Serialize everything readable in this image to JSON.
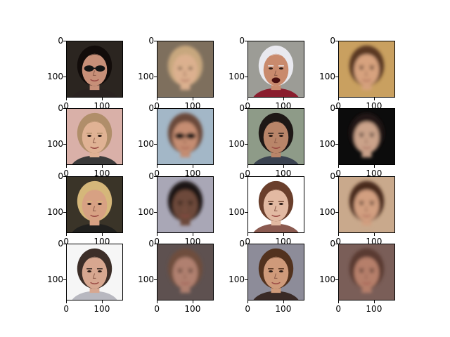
{
  "figure": {
    "background": "#ffffff",
    "tick_labels": [
      "0",
      "100"
    ],
    "panels": [
      {
        "row": 0,
        "col": 0,
        "bg": "#2b2520",
        "hair": "#120c0a",
        "skin": "#c78f78",
        "glasses": true,
        "shirt": "#2a2220"
      },
      {
        "row": 0,
        "col": 1,
        "bg": "#7e6f5d",
        "hair": "#c7a77e",
        "skin": "#dcb08f",
        "blur": true
      },
      {
        "row": 0,
        "col": 2,
        "bg": "#9c9c96",
        "hair": "#e9e9ef",
        "skin": "#c98a6d",
        "shirt": "#8a1d2e",
        "mouth_open": true
      },
      {
        "row": 0,
        "col": 3,
        "bg": "#c9a060",
        "hair": "#5a3824",
        "skin": "#d7a27e",
        "blur": true
      },
      {
        "row": 1,
        "col": 0,
        "bg": "#d9b0a8",
        "hair": "#b08e6a",
        "skin": "#e0b294",
        "shirt": "#3a3a3a"
      },
      {
        "row": 1,
        "col": 1,
        "bg": "#a3b7c7",
        "hair": "#6b4a3a",
        "skin": "#c58d72",
        "glasses": true,
        "blur": true
      },
      {
        "row": 1,
        "col": 2,
        "bg": "#8e9b88",
        "hair": "#1e1816",
        "skin": "#b98569",
        "shirt": "#3a4250"
      },
      {
        "row": 1,
        "col": 3,
        "bg": "#0c0c0c",
        "hair": "#221812",
        "skin": "#cba38a",
        "blur": true
      },
      {
        "row": 2,
        "col": 0,
        "bg": "#3a3428",
        "hair": "#d5b77a",
        "skin": "#d7a183",
        "shirt": "#20201e"
      },
      {
        "row": 2,
        "col": 1,
        "bg": "#a9a7b6",
        "hair": "#1d1512",
        "skin": "#6d4a3a",
        "blur": true
      },
      {
        "row": 2,
        "col": 2,
        "bg": "#ffffff",
        "hair": "#6a3f2c",
        "skin": "#e2b9a2",
        "shirt": "#8a5a50"
      },
      {
        "row": 2,
        "col": 3,
        "bg": "#c9a98c",
        "hair": "#4a2a1c",
        "skin": "#d29f80",
        "blur": true
      },
      {
        "row": 3,
        "col": 0,
        "bg": "#f6f6f6",
        "hair": "#3c2e28",
        "skin": "#d7a790",
        "shirt": "#b8b8c0"
      },
      {
        "row": 3,
        "col": 1,
        "bg": "#5e5150",
        "hair": "#6e4e3c",
        "skin": "#b08070",
        "blur": true
      },
      {
        "row": 3,
        "col": 2,
        "bg": "#8d8c99",
        "hair": "#52321e",
        "skin": "#cf9a7a",
        "shirt": "#3a2a26"
      },
      {
        "row": 3,
        "col": 3,
        "bg": "#7a5e58",
        "hair": "#5a3a30",
        "skin": "#b67f6b",
        "blur": true
      }
    ]
  }
}
